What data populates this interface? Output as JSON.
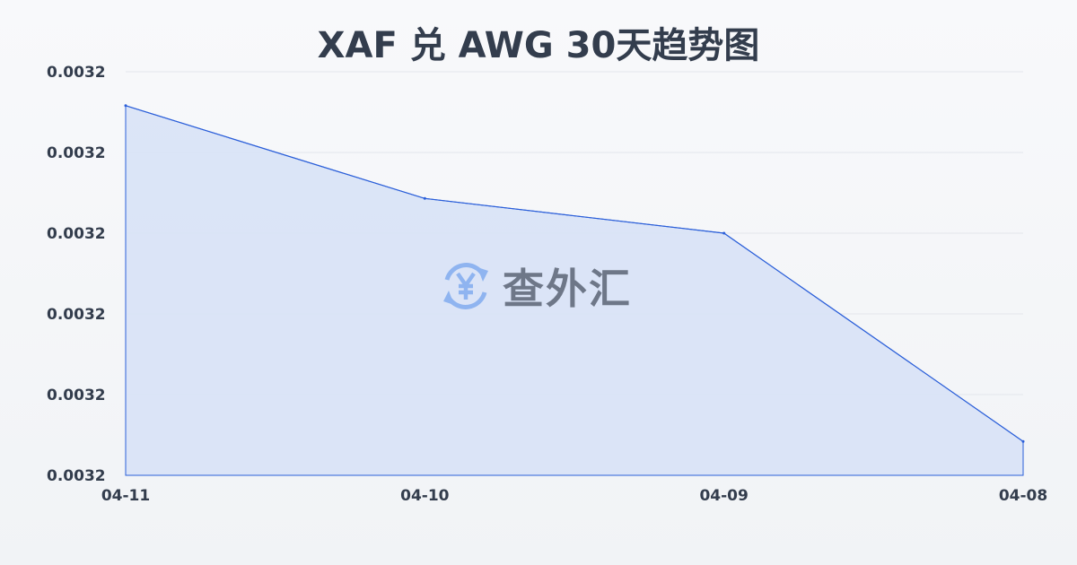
{
  "title": "XAF 兑 AWG 30天趋势图",
  "watermark": {
    "text": "查外汇",
    "icon": "yen-exchange-icon"
  },
  "colors": {
    "line": "#2b5fd9",
    "fill": "#d8e2f6",
    "grid": "#e3e6ec",
    "text": "#333d4d"
  },
  "chart_data": {
    "type": "area",
    "title": "XAF 兑 AWG 30天趋势图",
    "categories": [
      "04-11",
      "04-10",
      "04-09",
      "04-08"
    ],
    "values": [
      0.0032458,
      0.0032343,
      0.00323,
      0.0032042
    ],
    "ylim": [
      0.0032,
      0.00325
    ],
    "yticks": [
      0.0032,
      0.00321,
      0.00322,
      0.00323,
      0.00324,
      0.00325
    ],
    "ytick_labels": [
      "0.0032",
      "0.0032",
      "0.0032",
      "0.0032",
      "0.0032",
      "0.0032"
    ],
    "grid": true,
    "xlabel": "",
    "ylabel": ""
  }
}
